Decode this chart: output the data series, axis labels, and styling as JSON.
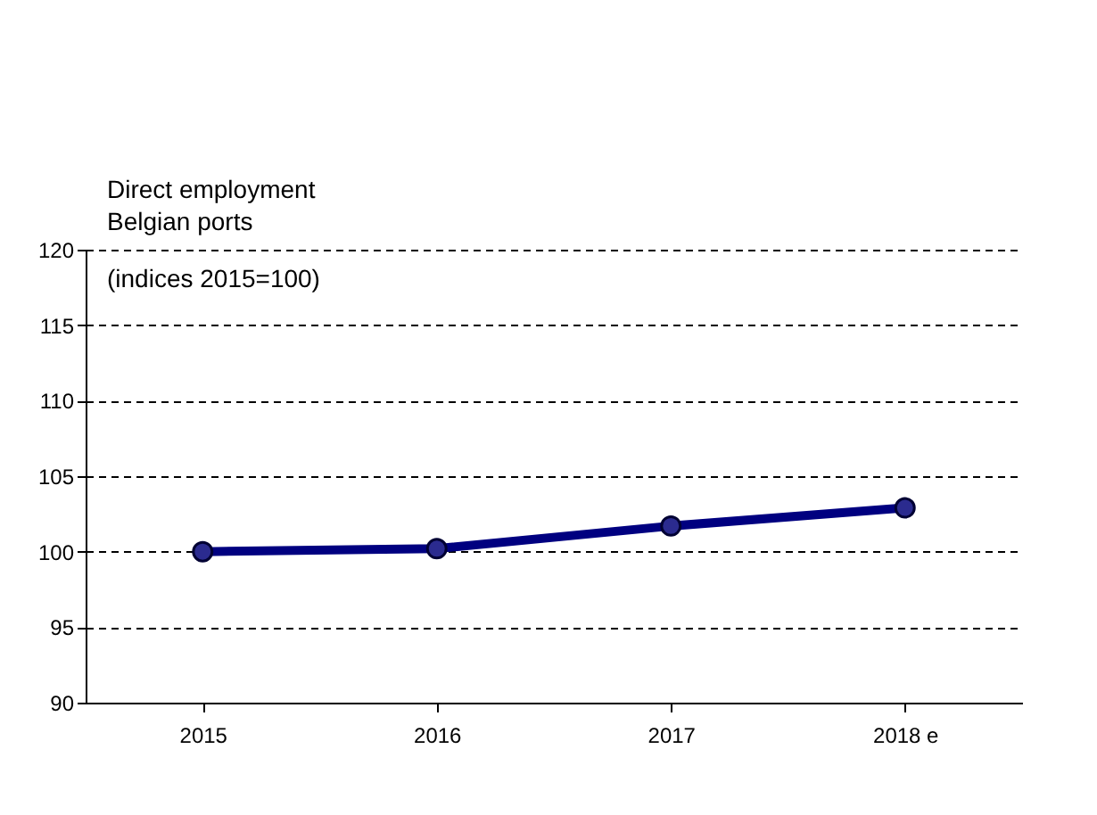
{
  "chart_data": {
    "type": "line",
    "title": [
      "Direct employment",
      "Belgian ports"
    ],
    "subtitle": "(indices 2015=100)",
    "categories": [
      "2015",
      "2016",
      "2017",
      "2018 e"
    ],
    "series": [
      {
        "color": "#000080",
        "values": [
          100,
          100.2,
          101.7,
          102.9
        ]
      }
    ],
    "ylim": [
      90,
      120
    ],
    "yticks": [
      90,
      95,
      100,
      105,
      110,
      115,
      120
    ],
    "grid": "y",
    "marker": "circle",
    "line_style": "solid"
  }
}
